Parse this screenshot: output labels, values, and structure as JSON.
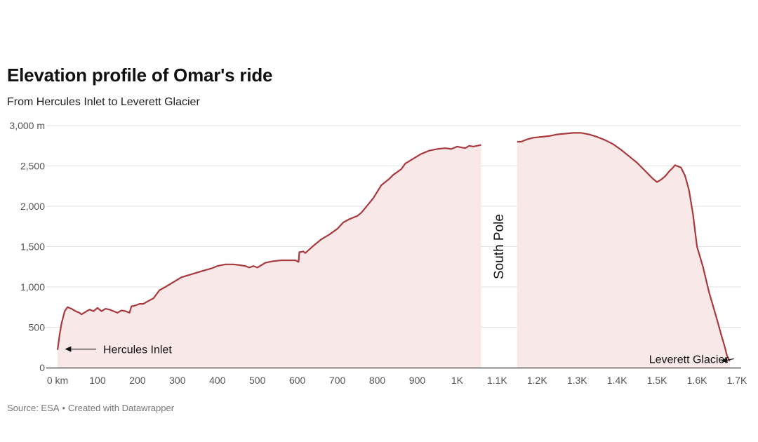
{
  "header": {
    "title": "Elevation profile of Omar's ride",
    "subtitle": "From Hercules Inlet to Leverett Glacier"
  },
  "footer": {
    "source": "Source: ESA",
    "separator": "•",
    "credit": "Created with Datawrapper"
  },
  "colors": {
    "line": "#a83a3e",
    "fill": "#f8e8e8",
    "grid": "#e2e2e2",
    "axis": "#333333"
  },
  "chart_data": {
    "type": "area",
    "title": "Elevation profile of Omar's ride",
    "subtitle": "From Hercules Inlet to Leverett Glacier",
    "xlim": [
      0,
      1700
    ],
    "ylim": [
      0,
      3000
    ],
    "grid": true,
    "y_ticks": [
      {
        "value": 0,
        "label": "0"
      },
      {
        "value": 500,
        "label": "500"
      },
      {
        "value": 1000,
        "label": "1,000"
      },
      {
        "value": 1500,
        "label": "1,500"
      },
      {
        "value": 2000,
        "label": "2,000"
      },
      {
        "value": 2500,
        "label": "2,500"
      },
      {
        "value": 3000,
        "label": "3,000 m"
      }
    ],
    "x_ticks": [
      {
        "value": 0,
        "label": "0 km"
      },
      {
        "value": 100,
        "label": "100"
      },
      {
        "value": 200,
        "label": "200"
      },
      {
        "value": 300,
        "label": "300"
      },
      {
        "value": 400,
        "label": "400"
      },
      {
        "value": 500,
        "label": "500"
      },
      {
        "value": 600,
        "label": "600"
      },
      {
        "value": 700,
        "label": "700"
      },
      {
        "value": 800,
        "label": "800"
      },
      {
        "value": 900,
        "label": "900"
      },
      {
        "value": 1000,
        "label": "1K"
      },
      {
        "value": 1100,
        "label": "1.1K"
      },
      {
        "value": 1200,
        "label": "1.2K"
      },
      {
        "value": 1300,
        "label": "1.3K"
      },
      {
        "value": 1400,
        "label": "1.4K"
      },
      {
        "value": 1500,
        "label": "1.5K"
      },
      {
        "value": 1600,
        "label": "1.6K"
      },
      {
        "value": 1700,
        "label": "1.7K"
      }
    ],
    "segments": [
      {
        "x": [
          0,
          5,
          10,
          18,
          25,
          35,
          45,
          55,
          60,
          70,
          80,
          90,
          100,
          110,
          120,
          130,
          140,
          150,
          160,
          170,
          180,
          185,
          195,
          205,
          215,
          225,
          240,
          255,
          270,
          290,
          310,
          330,
          350,
          370,
          385,
          400,
          420,
          440,
          455,
          470,
          480,
          490,
          500,
          520,
          540,
          560,
          580,
          595,
          603,
          605,
          615,
          620,
          640,
          660,
          680,
          700,
          715,
          730,
          750,
          760,
          775,
          790,
          800,
          810,
          830,
          840,
          860,
          870,
          890,
          910,
          930,
          950,
          970,
          985,
          1000,
          1020,
          1030,
          1040,
          1060
        ],
        "y": [
          220,
          400,
          550,
          700,
          750,
          730,
          700,
          680,
          660,
          690,
          720,
          700,
          740,
          700,
          730,
          720,
          700,
          680,
          710,
          700,
          680,
          760,
          770,
          790,
          790,
          820,
          860,
          960,
          1000,
          1060,
          1120,
          1150,
          1180,
          1210,
          1230,
          1260,
          1280,
          1280,
          1270,
          1260,
          1240,
          1260,
          1240,
          1300,
          1320,
          1330,
          1330,
          1330,
          1310,
          1430,
          1440,
          1420,
          1510,
          1590,
          1650,
          1720,
          1800,
          1840,
          1880,
          1920,
          2010,
          2100,
          2180,
          2260,
          2340,
          2390,
          2460,
          2530,
          2590,
          2650,
          2690,
          2710,
          2720,
          2710,
          2740,
          2720,
          2750,
          2740,
          2760
        ]
      },
      {
        "x": [
          1150,
          1160,
          1175,
          1190,
          1210,
          1230,
          1250,
          1270,
          1290,
          1310,
          1330,
          1350,
          1370,
          1390,
          1410,
          1430,
          1450,
          1470,
          1490,
          1500,
          1510,
          1520,
          1525,
          1530,
          1540,
          1545,
          1550,
          1560,
          1565,
          1570,
          1580,
          1590,
          1600,
          1615,
          1630,
          1650,
          1660,
          1670,
          1675,
          1682
        ],
        "y": [
          2800,
          2800,
          2830,
          2850,
          2860,
          2870,
          2890,
          2900,
          2910,
          2910,
          2890,
          2860,
          2820,
          2770,
          2700,
          2620,
          2540,
          2440,
          2340,
          2300,
          2330,
          2370,
          2400,
          2430,
          2480,
          2510,
          2500,
          2480,
          2430,
          2380,
          2200,
          1900,
          1500,
          1250,
          940,
          600,
          420,
          250,
          150,
          80
        ]
      }
    ],
    "annotations": [
      {
        "text": "South Pole",
        "x": 1105,
        "y": 1500,
        "orientation": "vertical"
      },
      {
        "text": "Hercules Inlet",
        "x": 100,
        "y": 230,
        "arrow_to": [
          20,
          230
        ]
      },
      {
        "text": "Leverett Glacier",
        "x": 1480,
        "y": 110,
        "arrow_to": [
          1662,
          80
        ]
      }
    ]
  }
}
